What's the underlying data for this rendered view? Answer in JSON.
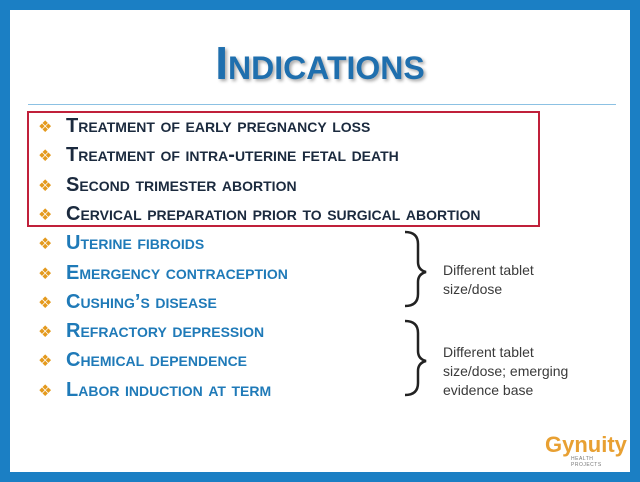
{
  "title": "Indications",
  "items": [
    "Treatment of early pregnancy loss",
    "Treatment of intra-uterine fetal death",
    "Second trimester abortion",
    "Cervical preparation prior to surgical abortion",
    "Uterine fibroids",
    "Emergency contraception",
    "Cushing’s disease",
    "Refractory depression",
    "Chemical dependence",
    "Labor induction at term"
  ],
  "notes": [
    "Different tablet size/dose",
    "Different tablet size/dose; emerging evidence base"
  ],
  "logo": {
    "name": "Gynuity",
    "tagline": "HEALTH PROJECTS"
  }
}
